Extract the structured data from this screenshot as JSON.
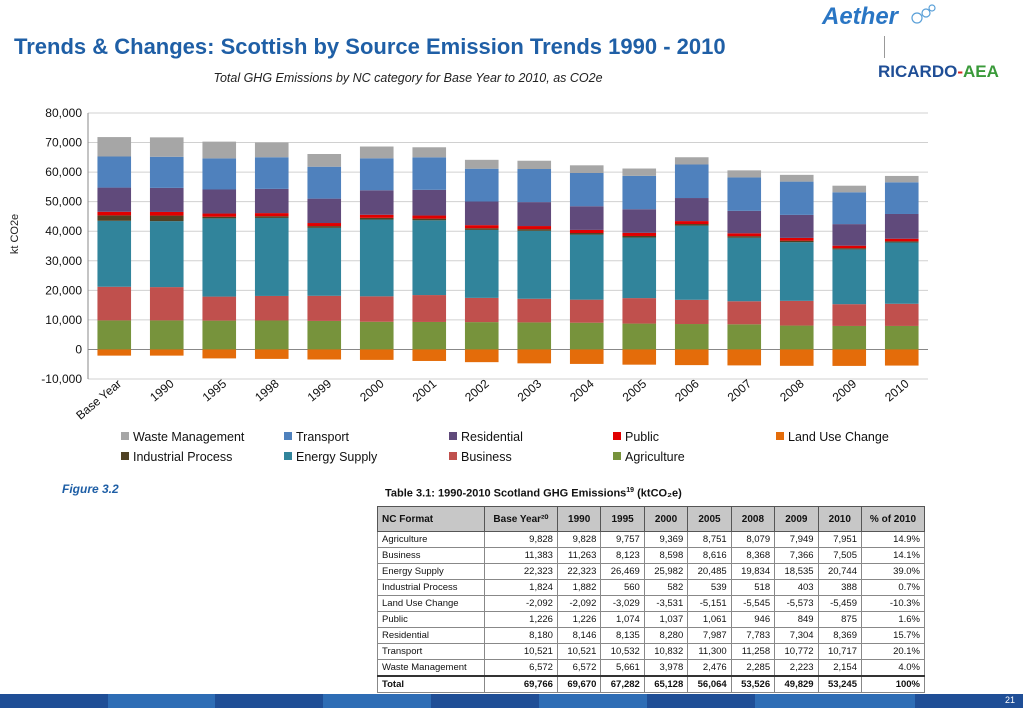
{
  "slide": {
    "title": "Trends & Changes: Scottish by Source Emission Trends 1990 - 2010",
    "figure_label": "Figure 3.2",
    "page_number": "21"
  },
  "logos": {
    "aether": "Aether",
    "ricardo": "RICARDO",
    "dash": "-",
    "aea": "AEA"
  },
  "chart_data": {
    "type": "bar",
    "stacked": true,
    "subtitle": "Total GHG Emissions by NC category for Base Year to 2010, as CO2e",
    "ylabel": "kt CO2e",
    "ylim": [
      -10000,
      80000
    ],
    "yticks": [
      -10000,
      0,
      10000,
      20000,
      30000,
      40000,
      50000,
      60000,
      70000,
      80000
    ],
    "ytick_labels": [
      "-10,000",
      "0",
      "10,000",
      "20,000",
      "30,000",
      "40,000",
      "50,000",
      "60,000",
      "70,000",
      "80,000"
    ],
    "grid": true,
    "legend_position": "bottom",
    "categories": [
      "Base Year",
      "1990",
      "1995",
      "1998",
      "1999",
      "2000",
      "2001",
      "2002",
      "2003",
      "2004",
      "2005",
      "2006",
      "2007",
      "2008",
      "2009",
      "2010"
    ],
    "series": [
      {
        "name": "Agriculture",
        "color": "#77933c",
        "values": [
          9828,
          9828,
          9757,
          9800,
          9650,
          9369,
          9300,
          9250,
          9150,
          9050,
          8751,
          8600,
          8500,
          8079,
          7949,
          7951
        ]
      },
      {
        "name": "Business",
        "color": "#c0504d",
        "values": [
          11383,
          11263,
          8123,
          8300,
          8500,
          8598,
          9100,
          8200,
          8000,
          7800,
          8616,
          8200,
          7800,
          8368,
          7366,
          7505
        ]
      },
      {
        "name": "Energy Supply",
        "color": "#31849b",
        "values": [
          22323,
          22323,
          26469,
          26400,
          23000,
          25982,
          25300,
          23000,
          23000,
          22000,
          20485,
          25100,
          21500,
          19834,
          18535,
          20744
        ]
      },
      {
        "name": "Industrial Process",
        "color": "#4f4123",
        "values": [
          1824,
          1882,
          560,
          570,
          575,
          582,
          560,
          555,
          545,
          540,
          539,
          530,
          525,
          518,
          403,
          388
        ]
      },
      {
        "name": "Public",
        "color": "#e00000",
        "values": [
          1226,
          1226,
          1074,
          1060,
          1050,
          1037,
          1045,
          1050,
          1055,
          1058,
          1061,
          1000,
          970,
          946,
          849,
          875
        ]
      },
      {
        "name": "Residential",
        "color": "#604a7b",
        "values": [
          8180,
          8146,
          8135,
          8200,
          8250,
          8280,
          8700,
          8000,
          8100,
          8000,
          7987,
          7800,
          7600,
          7783,
          7304,
          8369
        ]
      },
      {
        "name": "Transport",
        "color": "#4f81bd",
        "values": [
          10521,
          10521,
          10532,
          10700,
          10800,
          10832,
          11000,
          11100,
          11200,
          11250,
          11300,
          11350,
          11300,
          11258,
          10772,
          10717
        ]
      },
      {
        "name": "Waste Management",
        "color": "#a6a6a6",
        "values": [
          6572,
          6572,
          5661,
          5000,
          4300,
          3978,
          3400,
          3000,
          2800,
          2600,
          2476,
          2450,
          2400,
          2285,
          2223,
          2154
        ]
      },
      {
        "name": "Land Use Change",
        "color": "#e46c0a",
        "values": [
          -2092,
          -2092,
          -3029,
          -3200,
          -3400,
          -3531,
          -3900,
          -4300,
          -4700,
          -4900,
          -5151,
          -5300,
          -5400,
          -5545,
          -5573,
          -5459
        ]
      }
    ],
    "legend": [
      {
        "name": "Waste Management",
        "color": "#a6a6a6"
      },
      {
        "name": "Transport",
        "color": "#4f81bd"
      },
      {
        "name": "Residential",
        "color": "#604a7b"
      },
      {
        "name": "Public",
        "color": "#e00000"
      },
      {
        "name": "Land Use Change",
        "color": "#e46c0a"
      },
      {
        "name": "Industrial Process",
        "color": "#4f4123"
      },
      {
        "name": "Energy Supply",
        "color": "#31849b"
      },
      {
        "name": "Business",
        "color": "#c0504d"
      },
      {
        "name": "Agriculture",
        "color": "#77933c"
      }
    ]
  },
  "table": {
    "caption": "Table 3.1: 1990-2010 Scotland GHG Emissions",
    "caption_sup": "19",
    "caption_unit": "(ktCO₂e)",
    "headers": [
      "NC Format",
      "Base Year²⁰",
      "1990",
      "1995",
      "2000",
      "2005",
      "2008",
      "2009",
      "2010",
      "% of 2010"
    ],
    "rows": [
      [
        "Agriculture",
        "9,828",
        "9,828",
        "9,757",
        "9,369",
        "8,751",
        "8,079",
        "7,949",
        "7,951",
        "14.9%"
      ],
      [
        "Business",
        "11,383",
        "11,263",
        "8,123",
        "8,598",
        "8,616",
        "8,368",
        "7,366",
        "7,505",
        "14.1%"
      ],
      [
        "Energy Supply",
        "22,323",
        "22,323",
        "26,469",
        "25,982",
        "20,485",
        "19,834",
        "18,535",
        "20,744",
        "39.0%"
      ],
      [
        "Industrial Process",
        "1,824",
        "1,882",
        "560",
        "582",
        "539",
        "518",
        "403",
        "388",
        "0.7%"
      ],
      [
        "Land Use Change",
        "-2,092",
        "-2,092",
        "-3,029",
        "-3,531",
        "-5,151",
        "-5,545",
        "-5,573",
        "-5,459",
        "-10.3%"
      ],
      [
        "Public",
        "1,226",
        "1,226",
        "1,074",
        "1,037",
        "1,061",
        "946",
        "849",
        "875",
        "1.6%"
      ],
      [
        "Residential",
        "8,180",
        "8,146",
        "8,135",
        "8,280",
        "7,987",
        "7,783",
        "7,304",
        "8,369",
        "15.7%"
      ],
      [
        "Transport",
        "10,521",
        "10,521",
        "10,532",
        "10,832",
        "11,300",
        "11,258",
        "10,772",
        "10,717",
        "20.1%"
      ],
      [
        "Waste Management",
        "6,572",
        "6,572",
        "5,661",
        "3,978",
        "2,476",
        "2,285",
        "2,223",
        "2,154",
        "4.0%"
      ]
    ],
    "total": [
      "Total",
      "69,766",
      "69,670",
      "67,282",
      "65,128",
      "56,064",
      "53,526",
      "49,829",
      "53,245",
      "100%"
    ]
  },
  "footer_colors": [
    "#1f4e96",
    "#2e6db5",
    "#1f4e96",
    "#2e6db5",
    "#1f4e96",
    "#2e6db5",
    "#1f4e96",
    "#2e6db5",
    "#1f4e96"
  ]
}
